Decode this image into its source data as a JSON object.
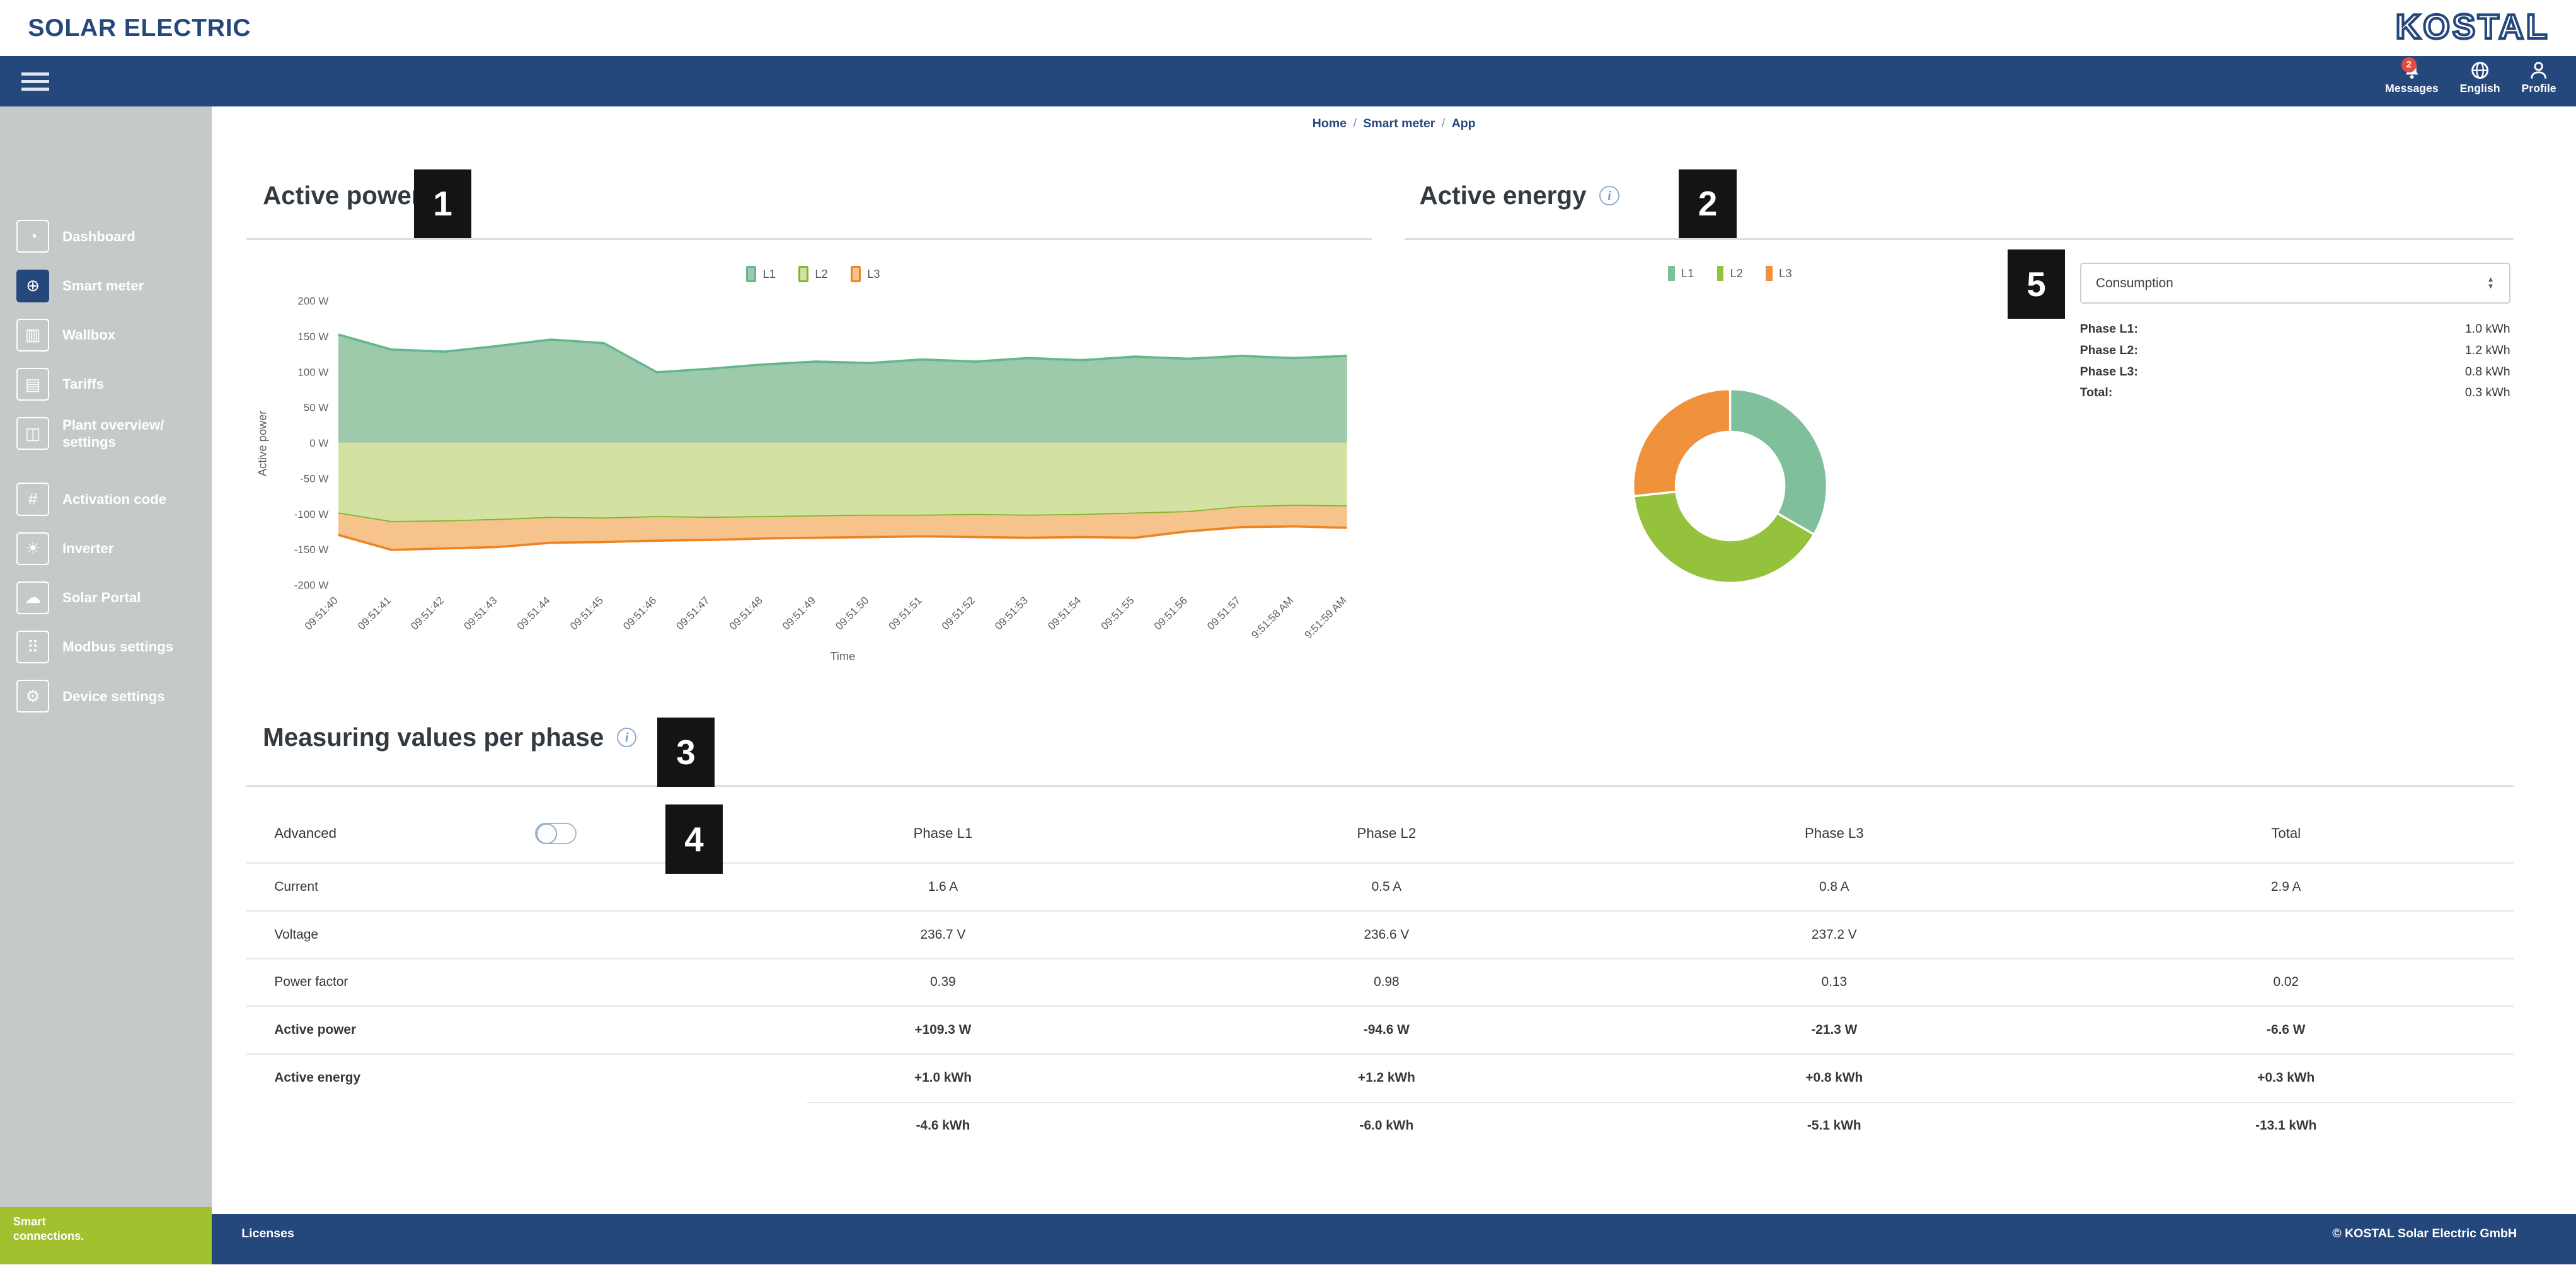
{
  "header": {
    "brand": "SOLAR ELECTRIC",
    "logo": "KOSTAL"
  },
  "navbar": {
    "messages": {
      "label": "Messages",
      "badge": "2",
      "icon": "bell-icon"
    },
    "language": {
      "label": "English",
      "icon": "globe-icon"
    },
    "profile": {
      "label": "Profile",
      "icon": "person-icon"
    }
  },
  "sidebar": {
    "items": [
      {
        "label": "Dashboard",
        "icon": "dashboard-icon",
        "active": false
      },
      {
        "label": "Smart meter",
        "icon": "smart-meter-icon",
        "active": true
      },
      {
        "label": "Wallbox",
        "icon": "wallbox-icon",
        "active": false
      },
      {
        "label": "Tariffs",
        "icon": "tariffs-icon",
        "active": false
      },
      {
        "label": "Plant overview/\nsettings",
        "icon": "plant-overview-icon",
        "active": false
      },
      {
        "label": "Activation code",
        "icon": "activation-code-icon",
        "active": false
      },
      {
        "label": "Inverter",
        "icon": "inverter-icon",
        "active": false
      },
      {
        "label": "Solar Portal",
        "icon": "solar-portal-icon",
        "active": false
      },
      {
        "label": "Modbus settings",
        "icon": "modbus-settings-icon",
        "active": false
      },
      {
        "label": "Device settings",
        "icon": "device-settings-icon",
        "active": false
      }
    ]
  },
  "breadcrumb": {
    "items": [
      "Home",
      "Smart meter",
      "App"
    ],
    "separator": "/"
  },
  "active_power": {
    "title": "Active power"
  },
  "active_energy": {
    "title": "Active energy",
    "select_value": "Consumption",
    "stats": [
      {
        "label": "Phase L1:",
        "value": "1.0 kWh"
      },
      {
        "label": "Phase L2:",
        "value": "1.2 kWh"
      },
      {
        "label": "Phase L3:",
        "value": "0.8 kWh"
      },
      {
        "label": "Total:",
        "value": "0.3 kWh"
      }
    ]
  },
  "measuring": {
    "title": "Measuring values per phase",
    "advanced_label": "Advanced",
    "advanced_toggle_state": "off",
    "columns": [
      "Phase L1",
      "Phase L2",
      "Phase L3",
      "Total"
    ],
    "rows": [
      {
        "label": "Current",
        "values": [
          "1.6 A",
          "0.5 A",
          "0.8 A",
          "2.9 A"
        ],
        "bold": false
      },
      {
        "label": "Voltage",
        "values": [
          "236.7 V",
          "236.6 V",
          "237.2 V",
          ""
        ],
        "bold": false
      },
      {
        "label": "Power factor",
        "values": [
          "0.39",
          "0.98",
          "0.13",
          "0.02"
        ],
        "bold": false
      },
      {
        "label": "Active power",
        "values": [
          "+109.3 W",
          "-94.6 W",
          "-21.3 W",
          "-6.6 W"
        ],
        "bold": true
      },
      {
        "label": "Active energy",
        "values": [
          "+1.0 kWh",
          "+1.2 kWh",
          "+0.8 kWh",
          "+0.3 kWh"
        ],
        "bold": true
      },
      {
        "label": "",
        "values": [
          "-4.6 kWh",
          "-6.0 kWh",
          "-5.1 kWh",
          "-13.1 kWh"
        ],
        "bold": true,
        "partial_border_top": true
      }
    ]
  },
  "annotations": {
    "labels": [
      "1",
      "2",
      "3",
      "4",
      "5"
    ]
  },
  "footer": {
    "tagline": "Smart connections.",
    "licenses": "Licenses",
    "copyright": "© KOSTAL Solar Electric GmbH"
  },
  "chart_data": [
    {
      "type": "area",
      "title": "Active power",
      "xlabel": "Time",
      "ylabel": "Active power",
      "ylim": [
        -200,
        200
      ],
      "yticks": [
        200,
        150,
        100,
        50,
        0,
        -50,
        -100,
        -150,
        -200
      ],
      "ytick_suffix": " W",
      "legend_position": "top",
      "x": [
        "09:51:40",
        "09:51:41",
        "09:51:42",
        "09:51:43",
        "09:51:44",
        "09:51:45",
        "09:51:46",
        "09:51:47",
        "09:51:48",
        "09:51:49",
        "09:51:50",
        "09:51:51",
        "09:51:52",
        "09:51:53",
        "09:51:54",
        "09:51:55",
        "09:51:56",
        "09:51:57",
        "9:51:58 AM",
        "9:51:59 AM"
      ],
      "series": [
        {
          "name": "L1",
          "line_color": "#63b78e",
          "fill_color": "#9ccaab",
          "band_from": "zero",
          "values": [
            152,
            131,
            128,
            136,
            145,
            140,
            99,
            104,
            110,
            114,
            112,
            117,
            114,
            119,
            116,
            121,
            118,
            122,
            119,
            122
          ]
        },
        {
          "name": "L2",
          "line_color": "#7cb82f",
          "fill_color": "#d3e2a3",
          "band_from": "zero",
          "values": [
            -100,
            -112,
            -111,
            -109,
            -106,
            -107,
            -105,
            -106,
            -105,
            -104,
            -103,
            -103,
            -102,
            -103,
            -102,
            -100,
            -98,
            -91,
            -89,
            -90
          ]
        },
        {
          "name": "L3",
          "line_color": "#ee8322",
          "fill_color": "#f6c38c",
          "band_from": "prev",
          "values": [
            -130,
            -151,
            -149,
            -147,
            -141,
            -140,
            -138,
            -137,
            -135,
            -134,
            -133,
            -132,
            -133,
            -134,
            -133,
            -134,
            -125,
            -119,
            -118,
            -120
          ]
        }
      ]
    },
    {
      "type": "donut",
      "title": "Active energy",
      "unit": "kWh",
      "labels": [
        "L1",
        "L2",
        "L3"
      ],
      "values": [
        1.0,
        1.2,
        0.8
      ],
      "colors": [
        "#7fbf9c",
        "#95c23c",
        "#f0923c"
      ],
      "selected_metric": "Consumption",
      "total_label": "Total:",
      "total": "0.3 kWh",
      "legend_position": "top"
    }
  ]
}
